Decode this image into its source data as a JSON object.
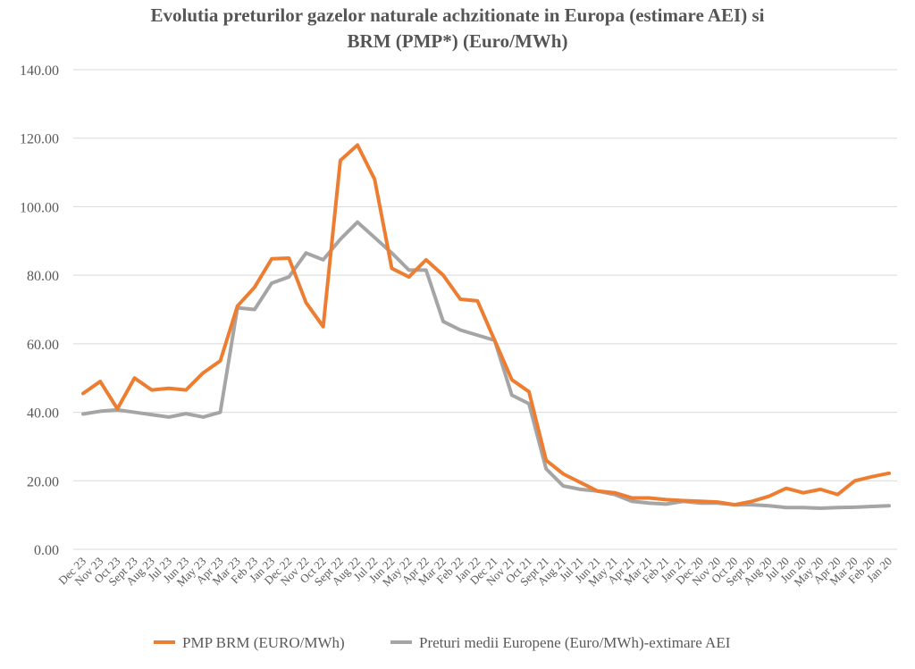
{
  "chart_data": {
    "type": "line",
    "title_lines": [
      "Evolutia preturilor gazelor naturale achzitionate in Europa (estimare AEI) si",
      "BRM (PMP*) (Euro/MWh)"
    ],
    "ylim": [
      0,
      140
    ],
    "yticks": [
      "0.00",
      "20.00",
      "40.00",
      "60.00",
      "80.00",
      "100.00",
      "120.00",
      "140.00"
    ],
    "grid": true,
    "legend_position": "bottom",
    "categories": [
      "Dec 23",
      "Nov 23",
      "Oct 23",
      "Sept 23",
      "Aug 23",
      "Jul 23",
      "Jun 23",
      "May 23",
      "Apr 23",
      "Mar 23",
      "Feb 23",
      "Jan 23",
      "Dec 22",
      "Nov 22",
      "Oct 22",
      "Sept 22",
      "Aug 22",
      "Jul 22",
      "Jun 22",
      "May 22",
      "Apr 22",
      "Mar 22",
      "Feb 22",
      "Jan 22",
      "Dec 21",
      "Nov 21",
      "Oct 21",
      "Sept 21",
      "Aug 21",
      "Jul 21",
      "Jun 21",
      "May 21",
      "Apr 21",
      "Mar 21",
      "Feb 21",
      "Jan 21",
      "Dec 20",
      "Nov 20",
      "Oct 20",
      "Sept 20",
      "Aug 20",
      "Jul 20",
      "Jun 20",
      "May 20",
      "Apr 20",
      "Mar 20",
      "Feb 20",
      "Jan 20"
    ],
    "series": [
      {
        "name": "PMP BRM (EURO/MWh)",
        "color": "#ed7d31",
        "values": [
          45.5,
          49,
          41,
          50,
          46.5,
          47,
          46.5,
          51.5,
          55,
          71,
          76.5,
          84.8,
          85,
          72,
          65,
          113.5,
          118,
          108,
          82,
          79.5,
          84.5,
          80,
          73,
          72.5,
          61,
          49.5,
          46,
          26,
          22,
          19.5,
          17,
          16.5,
          15,
          15,
          14.5,
          14.2,
          14,
          13.8,
          13,
          14,
          15.5,
          17.8,
          16.5,
          17.5,
          16,
          20,
          21.2,
          22.2
        ]
      },
      {
        "name": "Preturi medii Europene (Euro/MWh)-extimare AEI",
        "color": "#a5a5a5",
        "values": [
          39.5,
          40.3,
          40.7,
          40,
          39.3,
          38.6,
          39.6,
          38.6,
          40,
          70.5,
          70,
          77.7,
          79.5,
          86.5,
          84.5,
          90.5,
          95.5,
          91,
          86.5,
          81.5,
          81.5,
          66.5,
          64,
          62.5,
          61,
          45,
          42.5,
          23.5,
          18.5,
          17.5,
          17,
          16,
          14,
          13.5,
          13.2,
          14,
          13.5,
          13.5,
          13,
          13,
          12.7,
          12.2,
          12.2,
          12,
          12.2,
          12.3,
          12.5,
          12.7
        ]
      }
    ]
  }
}
